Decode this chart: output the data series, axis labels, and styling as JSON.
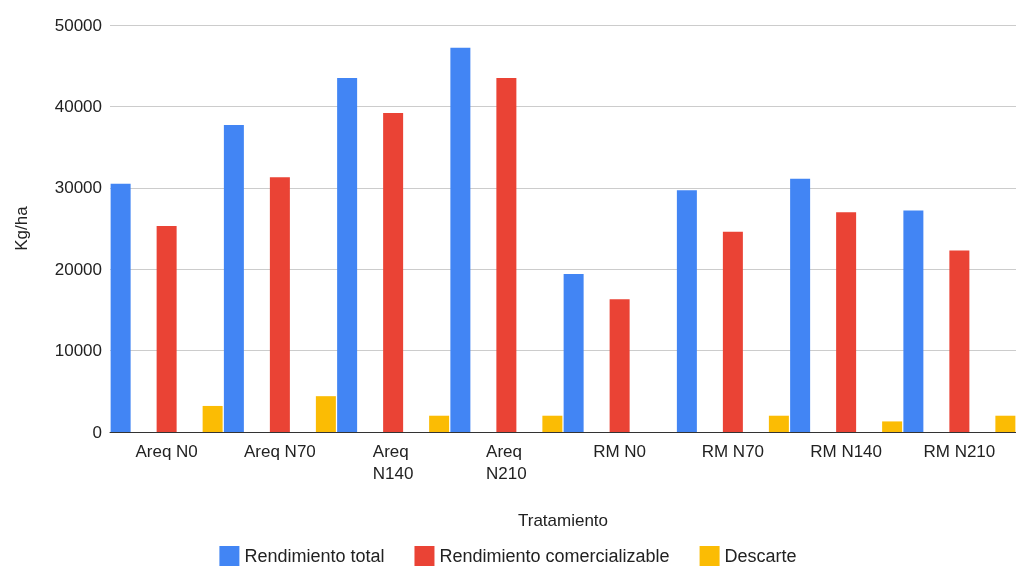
{
  "chart_data": {
    "type": "bar",
    "xlabel": "Tratamiento",
    "ylabel": "Kg/ha",
    "categories": [
      "Areq N0",
      "Areq N70",
      "Areq N140",
      "Areq N210",
      "RM N0",
      "RM N70",
      "RM N140",
      "RM N210"
    ],
    "series": [
      {
        "name": "Rendimiento total",
        "color": "#4285f4",
        "values": [
          30500,
          37700,
          43500,
          47200,
          19400,
          29700,
          31100,
          27200
        ]
      },
      {
        "name": "Rendimiento comercializable",
        "color": "#ea4335",
        "values": [
          25300,
          31300,
          39200,
          43500,
          16300,
          24600,
          27000,
          22300
        ]
      },
      {
        "name": "Descarte",
        "color": "#fbbc04",
        "values": [
          3200,
          4400,
          2000,
          2000,
          0,
          2000,
          1300,
          2000
        ]
      }
    ],
    "ylim": [
      0,
      50000
    ],
    "yticks": [
      0,
      10000,
      20000,
      30000,
      40000,
      50000
    ],
    "grid": "y",
    "legend": "bottom"
  }
}
